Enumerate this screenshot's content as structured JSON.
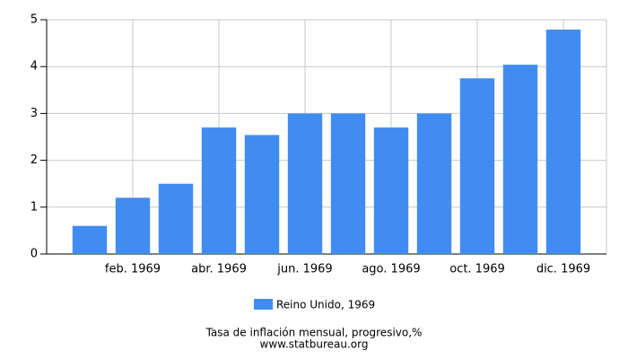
{
  "chart_data": {
    "type": "bar",
    "title": "Tasa de inflación mensual, progresivo,%",
    "source": "www.statbureau.org",
    "categories": [
      null,
      "feb. 1969",
      null,
      "abr. 1969",
      null,
      "jun. 1969",
      null,
      "ago. 1969",
      null,
      "oct. 1969",
      null,
      "dic. 1969"
    ],
    "series": [
      {
        "name": "Reino Unido, 1969",
        "color": "#418cf0",
        "values": [
          0.6,
          1.2,
          1.5,
          2.7,
          2.54,
          3.0,
          3.0,
          2.7,
          3.0,
          3.75,
          4.04,
          4.79
        ]
      }
    ],
    "ylim": [
      0,
      5
    ],
    "yticks": [
      0,
      1,
      2,
      3,
      4,
      5
    ],
    "grid": true
  }
}
